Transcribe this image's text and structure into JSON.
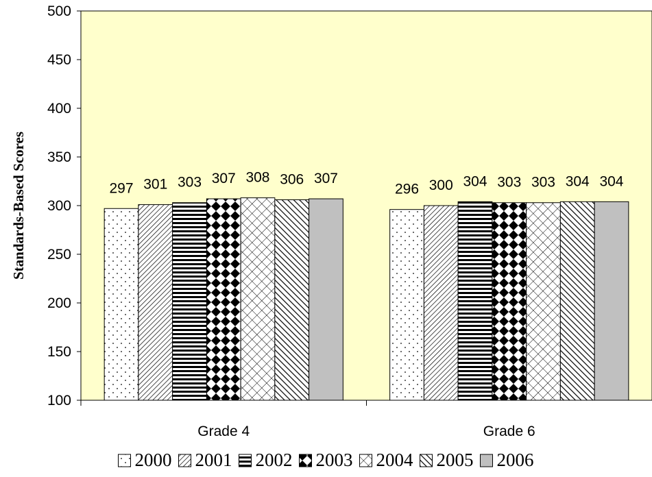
{
  "chart_data": {
    "type": "bar",
    "title": "",
    "xlabel": "",
    "ylabel": "Standards-Based Scores",
    "ylim": [
      100,
      500
    ],
    "yticks": [
      100,
      150,
      200,
      250,
      300,
      350,
      400,
      450,
      500
    ],
    "categories": [
      "Grade 4",
      "Grade 6"
    ],
    "series": [
      {
        "name": "2000",
        "values": [
          297,
          296
        ],
        "pattern": "dots"
      },
      {
        "name": "2001",
        "values": [
          301,
          300
        ],
        "pattern": "diag-right"
      },
      {
        "name": "2002",
        "values": [
          303,
          304
        ],
        "pattern": "horizontal"
      },
      {
        "name": "2003",
        "values": [
          307,
          303
        ],
        "pattern": "diamonds"
      },
      {
        "name": "2004",
        "values": [
          308,
          303
        ],
        "pattern": "crosshatch"
      },
      {
        "name": "2005",
        "values": [
          306,
          304
        ],
        "pattern": "diag-left"
      },
      {
        "name": "2006",
        "values": [
          307,
          304
        ],
        "pattern": "solid-gray"
      }
    ],
    "grid": false,
    "legend": "bottom",
    "colors": {
      "plot_background": "#ffffcc",
      "bar_outline": "#000000",
      "solid_fill": "#c0c0c0"
    }
  }
}
